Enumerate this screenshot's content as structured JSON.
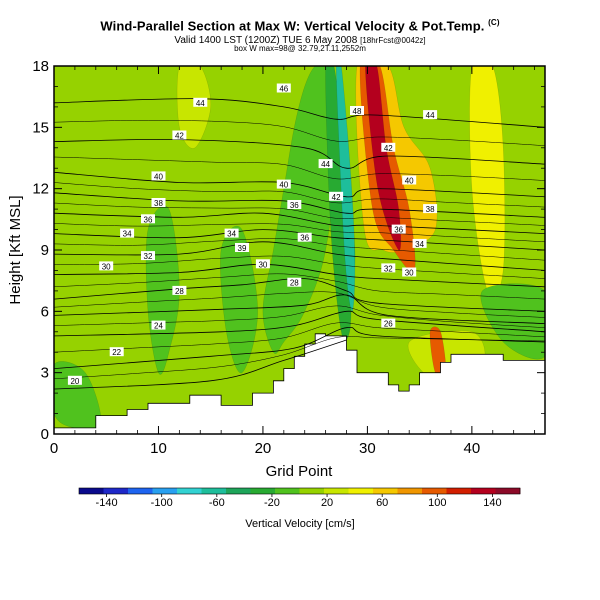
{
  "header": {
    "title": "Wind-Parallel Section at Max W: Vertical Velocity & Pot.Temp.",
    "title_mark": "(C)",
    "subtitle_main": "Valid 1400 LST (1200Z) TUE 6 May 2008",
    "subtitle_small": "[18hrFcst@0042z]",
    "subtitle2": "box W max=98@ 32.79,2T.11,2552m"
  },
  "chart_data": {
    "type": "heatmap",
    "xlabel": "Grid Point",
    "ylabel": "Height [Kft MSL]",
    "xlim": [
      0,
      47
    ],
    "ylim": [
      0,
      18
    ],
    "xticks": [
      "0",
      "10",
      "20",
      "30",
      "40"
    ],
    "xtick_values": [
      0,
      10,
      20,
      30,
      40
    ],
    "yticks": [
      "0",
      "3",
      "6",
      "9",
      "12",
      "15",
      "18"
    ],
    "ytick_values": [
      0,
      3,
      6,
      9,
      12,
      15,
      18
    ],
    "colorbar": {
      "label": "Vertical Velocity [cm/s]",
      "tick_labels": [
        "-140",
        "-100",
        "-60",
        "-20",
        "20",
        "60",
        "100",
        "140"
      ],
      "tick_values": [
        -140,
        -100,
        -60,
        -20,
        20,
        60,
        100,
        140
      ],
      "range": [
        -160,
        160
      ],
      "colors": [
        "#0a0a8c",
        "#1e28c8",
        "#1e64f0",
        "#28a0f0",
        "#32d2d2",
        "#1ebe9b",
        "#1ea55a",
        "#28aa32",
        "#50c21e",
        "#96d200",
        "#c8e600",
        "#f0f000",
        "#f5c800",
        "#f09600",
        "#e65a00",
        "#d21e00",
        "#b4001e",
        "#8c0a28"
      ]
    },
    "terrain_profile": {
      "x": [
        0,
        4,
        4,
        7,
        7,
        9,
        9,
        13,
        13,
        16,
        16,
        19,
        19,
        21,
        21,
        22,
        22,
        23,
        23,
        24,
        24,
        25,
        25,
        26,
        26,
        28,
        28,
        29,
        29,
        32,
        32,
        33,
        33,
        34,
        34,
        35,
        35,
        37,
        37,
        38,
        38,
        43,
        43,
        47
      ],
      "height": [
        0.3,
        0.3,
        0.9,
        0.9,
        1.2,
        1.2,
        1.5,
        1.5,
        1.9,
        1.9,
        1.4,
        1.4,
        2.0,
        2.0,
        2.6,
        2.6,
        3.2,
        3.2,
        3.8,
        3.8,
        4.4,
        4.4,
        4.9,
        4.9,
        4.8,
        4.8,
        4.1,
        4.1,
        3.0,
        3.0,
        2.4,
        2.4,
        2.1,
        2.1,
        2.4,
        2.4,
        3.0,
        3.0,
        3.5,
        3.5,
        3.9,
        3.9,
        3.6,
        3.6
      ]
    },
    "velocity_regions": [
      {
        "x": [
          0,
          47,
          47,
          0
        ],
        "height": [
          0,
          0,
          18,
          18
        ],
        "w": 10
      },
      {
        "x": [
          20,
          21,
          22,
          23,
          24,
          25,
          26,
          27,
          26,
          24,
          22,
          21
        ],
        "height": [
          6,
          9,
          12,
          15,
          17,
          18,
          18,
          14,
          9,
          6,
          4.5,
          4
        ],
        "w": -15
      },
      {
        "x": [
          26.0,
          26.8,
          28.0,
          28.8,
          28.5,
          28.3,
          27.5,
          26.5
        ],
        "height": [
          18,
          18,
          13,
          9,
          7,
          5,
          5,
          10
        ],
        "w": -35
      },
      {
        "x": [
          27.0,
          27.5,
          28.5,
          28.8,
          28.5,
          27.8
        ],
        "height": [
          18,
          18,
          12,
          8,
          6,
          9
        ],
        "w": -65
      },
      {
        "x": [
          29.0,
          32.0,
          33.5,
          36.0,
          36.5,
          33.5,
          31.5,
          29.7
        ],
        "height": [
          18,
          18,
          15,
          13,
          10,
          9,
          9,
          10
        ],
        "w": 55
      },
      {
        "x": [
          29.3,
          31.2,
          32.5,
          34.0,
          34.5,
          32.5,
          30.5
        ],
        "height": [
          18,
          18,
          14,
          11,
          8,
          9,
          11
        ],
        "w": 90
      },
      {
        "x": [
          29.8,
          30.9,
          31.8,
          33.0,
          33.0,
          31.0
        ],
        "height": [
          18,
          18,
          14,
          11,
          9,
          12
        ],
        "w": 125
      },
      {
        "x": [
          40,
          42,
          43,
          43,
          41.5,
          40
        ],
        "height": [
          18,
          18,
          14,
          8,
          7,
          12
        ],
        "w": 50
      },
      {
        "x": [
          41,
          47,
          47,
          43
        ],
        "height": [
          7,
          7,
          3.8,
          4.5
        ],
        "w": -12
      },
      {
        "x": [
          34,
          40,
          41,
          36.5
        ],
        "height": [
          4.5,
          5,
          3.4,
          2.6
        ],
        "w": 35
      },
      {
        "x": [
          36,
          37,
          37.5,
          36.5
        ],
        "height": [
          5,
          5,
          3,
          3
        ],
        "w": 90
      },
      {
        "x": [
          9,
          11,
          12,
          11,
          10,
          9
        ],
        "height": [
          10,
          11,
          7,
          4,
          3,
          6
        ],
        "w": -8
      },
      {
        "x": [
          16,
          18,
          19.5,
          18,
          16.5
        ],
        "height": [
          9,
          10,
          6,
          3,
          5
        ],
        "w": -8
      },
      {
        "x": [
          0,
          3,
          4.5,
          2,
          0
        ],
        "height": [
          3.4,
          3,
          0.5,
          0.3,
          1
        ],
        "w": -8
      },
      {
        "x": [
          12,
          14,
          15,
          13.5,
          12
        ],
        "height": [
          18,
          18,
          16,
          14,
          15
        ],
        "w": 30
      }
    ],
    "theta_contours": [
      {
        "level": 20,
        "label": "20",
        "x": [
          0,
          15,
          22,
          28
        ],
        "height": [
          2.2,
          2.6,
          3.6,
          4.6
        ],
        "label_x": 2,
        "label_height": 2.6
      },
      {
        "level": 22,
        "label": "22",
        "x": [
          0,
          15,
          23,
          28,
          31,
          47
        ],
        "height": [
          3.2,
          3.8,
          4.2,
          5.2,
          4.8,
          4.5
        ],
        "label_x": 6,
        "label_height": 4.0
      },
      {
        "level": 24,
        "label": "24",
        "x": [
          0,
          16,
          23,
          28,
          31,
          47
        ],
        "height": [
          4.8,
          5.0,
          5.3,
          6.0,
          5.6,
          5.0
        ],
        "label_x": 10,
        "label_height": 5.3
      },
      {
        "level": 26,
        "label": "26",
        "x": [
          0,
          16,
          24,
          28,
          32,
          47
        ],
        "height": [
          5.8,
          6.1,
          6.3,
          6.8,
          5.8,
          5.4
        ],
        "label_x": 32,
        "label_height": 5.4
      },
      {
        "level": 28,
        "label": "28",
        "x": [
          0,
          12,
          18,
          24,
          28,
          31,
          47
        ],
        "height": [
          6.6,
          7.1,
          7.3,
          7.6,
          7.0,
          6.4,
          6.0
        ],
        "label_x": 12,
        "label_height": 7.0
      },
      {
        "level": 30,
        "label": "30",
        "x": [
          0,
          12,
          20,
          27,
          31,
          47
        ],
        "height": [
          7.8,
          7.9,
          8.3,
          7.8,
          7.6,
          7.2
        ],
        "label_x": 5,
        "label_height": 8.2
      },
      {
        "level": 32,
        "label": "32",
        "x": [
          0,
          12,
          20,
          27,
          31,
          47
        ],
        "height": [
          8.8,
          8.8,
          9.4,
          8.8,
          8.6,
          8.0
        ],
        "label_x": 9,
        "label_height": 8.7
      },
      {
        "level": 34,
        "label": "34",
        "x": [
          0,
          12,
          20,
          27,
          31,
          47
        ],
        "height": [
          9.8,
          9.6,
          10.0,
          9.6,
          9.5,
          9.0
        ],
        "label_x": 7,
        "label_height": 9.8
      },
      {
        "level": 36,
        "label": "36",
        "x": [
          0,
          12,
          20,
          27,
          31,
          47
        ],
        "height": [
          10.8,
          10.6,
          10.8,
          10.2,
          10.2,
          9.8
        ],
        "label_x": 9,
        "label_height": 10.5
      },
      {
        "level": 38,
        "label": "38",
        "x": [
          0,
          12,
          22,
          28,
          31,
          47
        ],
        "height": [
          11.8,
          11.4,
          11.4,
          10.8,
          11.0,
          10.6
        ],
        "label_x": 10,
        "label_height": 11.3
      },
      {
        "level": 40,
        "label": "40",
        "x": [
          0,
          12,
          22,
          28,
          31,
          47
        ],
        "height": [
          12.8,
          12.3,
          12.3,
          11.6,
          12.0,
          11.6
        ],
        "label_x": 10,
        "label_height": 12.6
      },
      {
        "level": 42,
        "label": "42",
        "x": [
          0,
          12,
          24,
          28,
          32,
          47
        ],
        "height": [
          14.3,
          14.4,
          14.0,
          13.0,
          13.6,
          13.2
        ],
        "label_x": 12,
        "label_height": 14.6
      },
      {
        "level": 44,
        "label": "44",
        "x": [
          0,
          14,
          22,
          27,
          31,
          47
        ],
        "height": [
          16.2,
          16.4,
          16.0,
          15.4,
          15.6,
          15.0
        ],
        "label_x": 14,
        "label_height": 16.2
      }
    ],
    "extra_theta_labels": [
      {
        "label": "46",
        "x": 22,
        "height": 16.9
      },
      {
        "label": "40",
        "x": 22,
        "height": 12.2
      },
      {
        "label": "36",
        "x": 23,
        "height": 11.2
      },
      {
        "label": "34",
        "x": 17,
        "height": 9.8
      },
      {
        "label": "36",
        "x": 24,
        "height": 9.6
      },
      {
        "label": "39",
        "x": 18,
        "height": 9.1
      },
      {
        "label": "30",
        "x": 20,
        "height": 8.3
      },
      {
        "label": "44",
        "x": 26,
        "height": 13.2
      },
      {
        "label": "48",
        "x": 29,
        "height": 15.8
      },
      {
        "label": "42",
        "x": 32,
        "height": 14.0
      },
      {
        "label": "44",
        "x": 36,
        "height": 15.6
      },
      {
        "label": "40",
        "x": 34,
        "height": 12.4
      },
      {
        "label": "38",
        "x": 36,
        "height": 11.0
      },
      {
        "label": "36",
        "x": 33,
        "height": 10.0
      },
      {
        "label": "34",
        "x": 35,
        "height": 9.3
      },
      {
        "label": "32",
        "x": 32,
        "height": 8.1
      },
      {
        "label": "30",
        "x": 34,
        "height": 7.9
      },
      {
        "label": "28",
        "x": 23,
        "height": 7.4
      },
      {
        "label": "42",
        "x": 27,
        "height": 11.6
      }
    ]
  }
}
